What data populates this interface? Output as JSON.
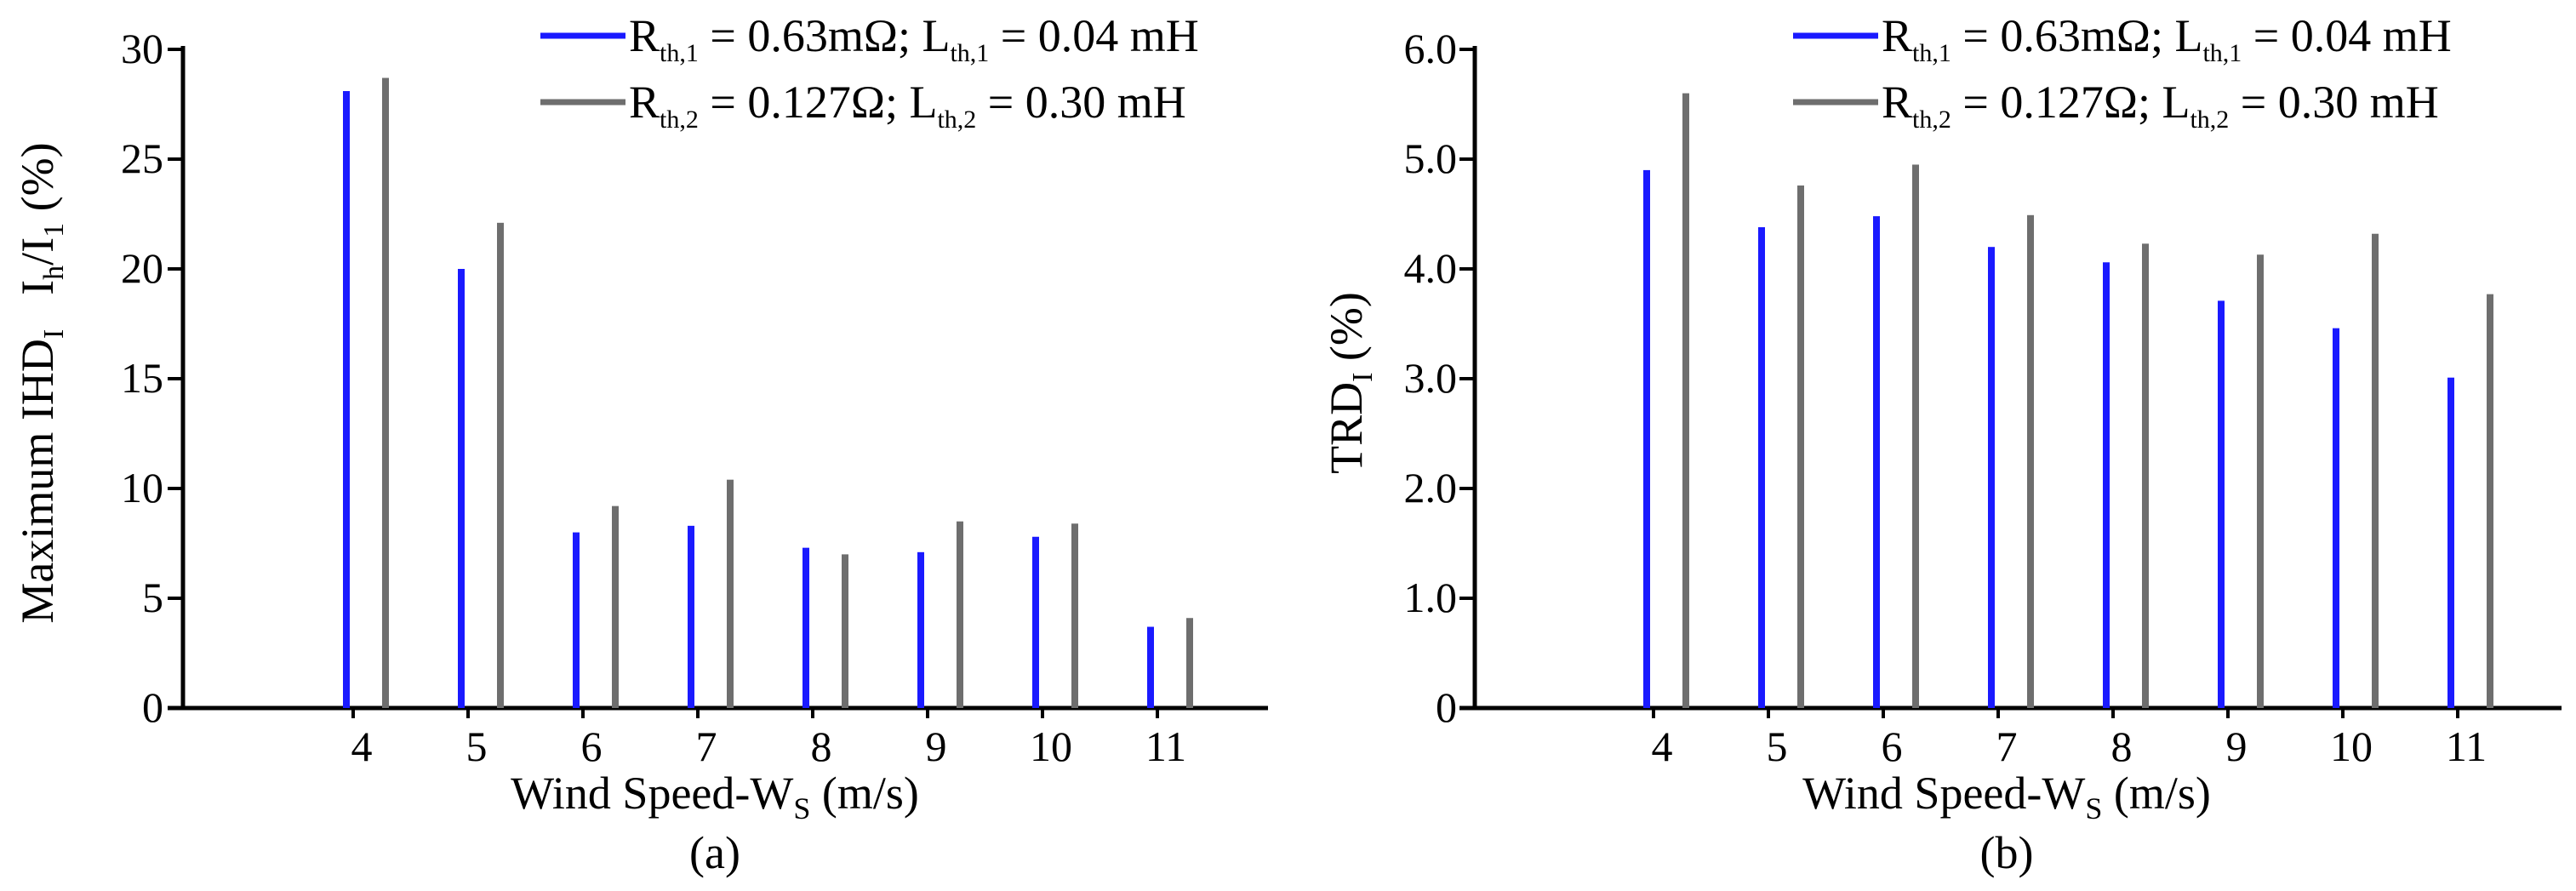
{
  "colors": {
    "series1": "#1a1aff",
    "series2": "#6e6e6e",
    "axis": "#000000"
  },
  "chart_data": [
    {
      "type": "bar",
      "panel_label": "(a)",
      "categories": [
        "4",
        "5",
        "6",
        "7",
        "8",
        "9",
        "10",
        "11"
      ],
      "xlabel_main": "Wind Speed-W",
      "xlabel_sub": "S",
      "xlabel_tail": " (m/s)",
      "ylabel_parts": {
        "lead": "Maximum IHD",
        "lead_sub": "I",
        "mid": "I",
        "mid_sub": "h",
        "slash": "/I",
        "end_sub": "1",
        "tail": " (%)"
      },
      "ylim": [
        0,
        30
      ],
      "yticks": [
        0,
        5,
        10,
        15,
        20,
        25,
        30
      ],
      "ytick_labels": [
        "0",
        "5",
        "10",
        "15",
        "20",
        "25",
        "30"
      ],
      "series": [
        {
          "name": "Rth,1 = 0.63mΩ; Lth,1 = 0.04 mH",
          "values": [
            28.1,
            20.0,
            8.0,
            8.3,
            7.3,
            7.1,
            7.8,
            3.7
          ]
        },
        {
          "name": "Rth,2 = 0.127Ω; Lth,2 = 0.30 mH",
          "values": [
            28.7,
            22.1,
            9.2,
            10.4,
            7.0,
            8.5,
            8.4,
            4.1
          ]
        }
      ],
      "legend": [
        {
          "R": "R",
          "Rsub": "th,1",
          "mid": " = 0.63mΩ; L",
          "Lsub": "th,1",
          "end": " = 0.04 mH"
        },
        {
          "R": "R",
          "Rsub": "th,2",
          "mid": " = 0.127Ω; L",
          "Lsub": "th,2",
          "end": " = 0.30 mH"
        }
      ],
      "legend_position": "top-right"
    },
    {
      "type": "bar",
      "panel_label": "(b)",
      "categories": [
        "4",
        "5",
        "6",
        "7",
        "8",
        "9",
        "10",
        "11"
      ],
      "xlabel_main": "Wind Speed-W",
      "xlabel_sub": "S",
      "xlabel_tail": " (m/s)",
      "ylabel_parts": {
        "lead": "TRD",
        "lead_sub": "I",
        "tail": " (%)"
      },
      "ylim": [
        0,
        6
      ],
      "yticks": [
        0,
        1,
        2,
        3,
        4,
        5,
        6
      ],
      "ytick_labels": [
        "0",
        "1.0",
        "2.0",
        "3.0",
        "4.0",
        "5.0",
        "6.0"
      ],
      "series": [
        {
          "name": "Rth,1 = 0.63mΩ; Lth,1 = 0.04 mH",
          "values": [
            4.9,
            4.38,
            4.48,
            4.2,
            4.06,
            3.71,
            3.46,
            3.01
          ]
        },
        {
          "name": "Rth,2 = 0.127Ω; Lth,2 = 0.30 mH",
          "values": [
            5.6,
            4.76,
            4.95,
            4.49,
            4.23,
            4.13,
            4.32,
            3.77
          ]
        }
      ],
      "legend": [
        {
          "R": "R",
          "Rsub": "th,1",
          "mid": " = 0.63mΩ; L",
          "Lsub": "th,1",
          "end": " = 0.04 mH"
        },
        {
          "R": "R",
          "Rsub": "th,2",
          "mid": " = 0.127Ω; L",
          "Lsub": "th,2",
          "end": " = 0.30 mH"
        }
      ],
      "legend_position": "top-right"
    }
  ]
}
